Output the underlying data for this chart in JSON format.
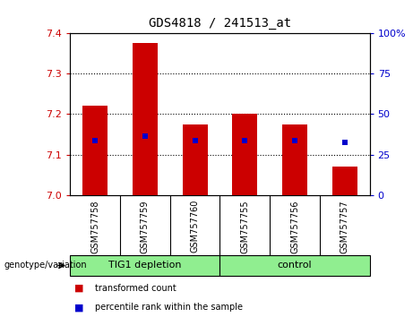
{
  "title": "GDS4818 / 241513_at",
  "samples": [
    "GSM757758",
    "GSM757759",
    "GSM757760",
    "GSM757755",
    "GSM757756",
    "GSM757757"
  ],
  "bar_values": [
    7.22,
    7.375,
    7.175,
    7.2,
    7.175,
    7.07
  ],
  "bar_base": 7.0,
  "percentile_y_positions": [
    7.135,
    7.145,
    7.135,
    7.135,
    7.135,
    7.13
  ],
  "ylim": [
    7.0,
    7.4
  ],
  "yticks": [
    7.0,
    7.1,
    7.2,
    7.3,
    7.4
  ],
  "y2lim": [
    0,
    100
  ],
  "y2ticks": [
    0,
    25,
    50,
    75,
    100
  ],
  "y2ticklabels": [
    "0",
    "25",
    "50",
    "75",
    "100%"
  ],
  "bar_color": "#cc0000",
  "dot_color": "#0000cc",
  "ylabel_color": "#cc0000",
  "y2label_color": "#0000cc",
  "bar_width": 0.5,
  "tick_label_bg": "#c8c8c8",
  "group_bg": "#90ee90",
  "group_info": [
    {
      "label": "TIG1 depletion",
      "start": 0,
      "end": 3
    },
    {
      "label": "control",
      "start": 3,
      "end": 6
    }
  ],
  "legend_items": [
    {
      "color": "#cc0000",
      "label": "transformed count"
    },
    {
      "color": "#0000cc",
      "label": "percentile rank within the sample"
    }
  ]
}
